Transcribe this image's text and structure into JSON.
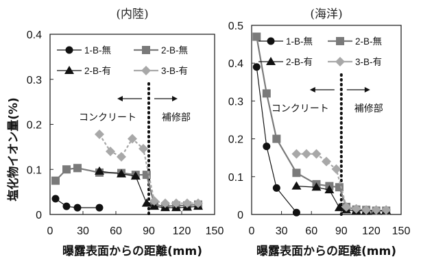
{
  "ylabel": "塩化物イオン量(%)",
  "chart_data": [
    {
      "type": "line",
      "title": "(内陸)",
      "xlabel": "曝露表面からの距離(mm)",
      "ylabel": "塩化物イオン量(%)",
      "xlim": [
        0,
        150
      ],
      "ylim": [
        0,
        0.4
      ],
      "xticks": [
        0,
        30,
        60,
        90,
        120,
        150
      ],
      "yticks": [
        0,
        0.1,
        0.2,
        0.3,
        0.4
      ],
      "x_tick_labels": [
        "0",
        "30",
        "60",
        "90",
        "120",
        "150"
      ],
      "y_tick_labels": [
        "0",
        "0.1",
        "0.2",
        "0.3",
        "0.4"
      ],
      "legend_position": "top",
      "boundary_x": 90,
      "annotations": [
        "コンクリート",
        "補修部"
      ],
      "series": [
        {
          "name": "1-B-無",
          "marker": "circle",
          "color": "#111111",
          "x": [
            5,
            15,
            25,
            45
          ],
          "y": [
            0.035,
            0.018,
            0.015,
            0.015
          ]
        },
        {
          "name": "2-B-無",
          "marker": "square",
          "color": "#7a7a7a",
          "x": [
            5,
            15,
            25,
            45,
            65,
            78,
            88,
            95,
            105,
            115,
            125,
            135
          ],
          "y": [
            0.075,
            0.1,
            0.103,
            0.093,
            0.092,
            0.088,
            0.088,
            0.022,
            0.018,
            0.02,
            0.02,
            0.022
          ]
        },
        {
          "name": "2-B-有",
          "marker": "triangle",
          "color": "#111111",
          "x": [
            45,
            65,
            78,
            88,
            95,
            105,
            115,
            125,
            135
          ],
          "y": [
            0.096,
            0.09,
            0.085,
            0.025,
            0.018,
            0.015,
            0.015,
            0.016,
            0.018
          ]
        },
        {
          "name": "3-B-有",
          "marker": "diamond",
          "color": "#a8a8a8",
          "x": [
            45,
            55,
            65,
            75,
            85,
            95,
            105,
            115,
            125,
            135
          ],
          "y": [
            0.178,
            0.14,
            0.128,
            0.168,
            0.146,
            0.03,
            0.025,
            0.025,
            0.025,
            0.025
          ]
        }
      ]
    },
    {
      "type": "line",
      "title": "(海洋)",
      "xlabel": "曝露表面からの距離(mm)",
      "ylabel": "",
      "xlim": [
        0,
        150
      ],
      "ylim": [
        0,
        0.5
      ],
      "xticks": [
        0,
        30,
        60,
        90,
        120,
        150
      ],
      "yticks": [
        0,
        0.1,
        0.2,
        0.3,
        0.4,
        0.5
      ],
      "x_tick_labels": [
        "0",
        "30",
        "60",
        "90",
        "120",
        "150"
      ],
      "y_tick_labels": [
        "0",
        "0.1",
        "0.2",
        "0.3",
        "0.4",
        "0.5"
      ],
      "legend_position": "top",
      "boundary_x": 90,
      "annotations": [
        "コンクリート",
        "補修部"
      ],
      "series": [
        {
          "name": "1-B-無",
          "marker": "circle",
          "color": "#111111",
          "x": [
            5,
            15,
            25,
            45
          ],
          "y": [
            0.39,
            0.18,
            0.07,
            0.005
          ]
        },
        {
          "name": "2-B-無",
          "marker": "square",
          "color": "#7a7a7a",
          "x": [
            5,
            15,
            25,
            45,
            65,
            78,
            88,
            95,
            105,
            115,
            125,
            135
          ],
          "y": [
            0.47,
            0.32,
            0.2,
            0.11,
            0.08,
            0.075,
            0.072,
            0.02,
            0.013,
            0.012,
            0.01,
            0.01
          ]
        },
        {
          "name": "2-B-有",
          "marker": "triangle",
          "color": "#111111",
          "x": [
            45,
            65,
            78,
            88,
            95,
            105,
            115,
            125,
            135
          ],
          "y": [
            0.075,
            0.072,
            0.065,
            0.018,
            0.012,
            0.01,
            0.01,
            0.01,
            0.01
          ]
        },
        {
          "name": "3-B-有",
          "marker": "diamond",
          "color": "#a8a8a8",
          "x": [
            45,
            55,
            65,
            75,
            85,
            95,
            105,
            115,
            125,
            135
          ],
          "y": [
            0.16,
            0.16,
            0.16,
            0.14,
            0.12,
            0.02,
            0.015,
            0.012,
            0.012,
            0.012
          ]
        }
      ]
    }
  ]
}
